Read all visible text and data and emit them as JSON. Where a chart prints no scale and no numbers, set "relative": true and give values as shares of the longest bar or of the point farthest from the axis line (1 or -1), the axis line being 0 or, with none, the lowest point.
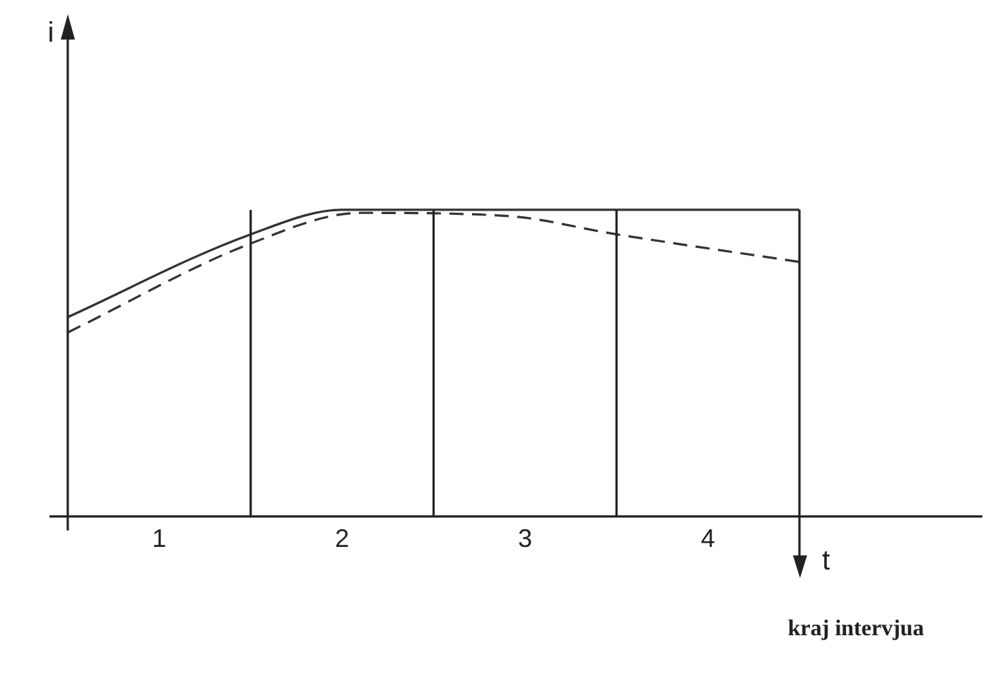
{
  "chart_data": {
    "type": "line",
    "relative": true,
    "xlabel": "t",
    "annotations": [
      "i"
    ],
    "xlim": [
      -0.1,
      5
    ],
    "xticks": [
      {
        "value": 0.5,
        "label": "1"
      },
      {
        "value": 1.5,
        "label": "2"
      },
      {
        "value": 2.5,
        "label": "3"
      },
      {
        "value": 3.5,
        "label": "4"
      }
    ],
    "series": [
      {
        "color": "#333333",
        "line_style": "solid",
        "x": [
          0,
          1,
          1.5,
          4
        ],
        "values": [
          0.65,
          0.92,
          1,
          1
        ]
      },
      {
        "color": "#333333",
        "line_style": "dashed",
        "x": [
          0,
          1,
          1.6,
          2.4,
          3,
          4
        ],
        "values": [
          0.6,
          0.89,
          0.99,
          0.98,
          0.92,
          0.83
        ]
      }
    ],
    "ref_lines": [
      {
        "axis": "x",
        "value": 1
      },
      {
        "axis": "x",
        "value": 2
      },
      {
        "axis": "x",
        "value": 3
      },
      {
        "axis": "x",
        "value": 4,
        "label": "kraj intervjua"
      }
    ],
    "marker": "none",
    "grid": false,
    "legend": false
  }
}
